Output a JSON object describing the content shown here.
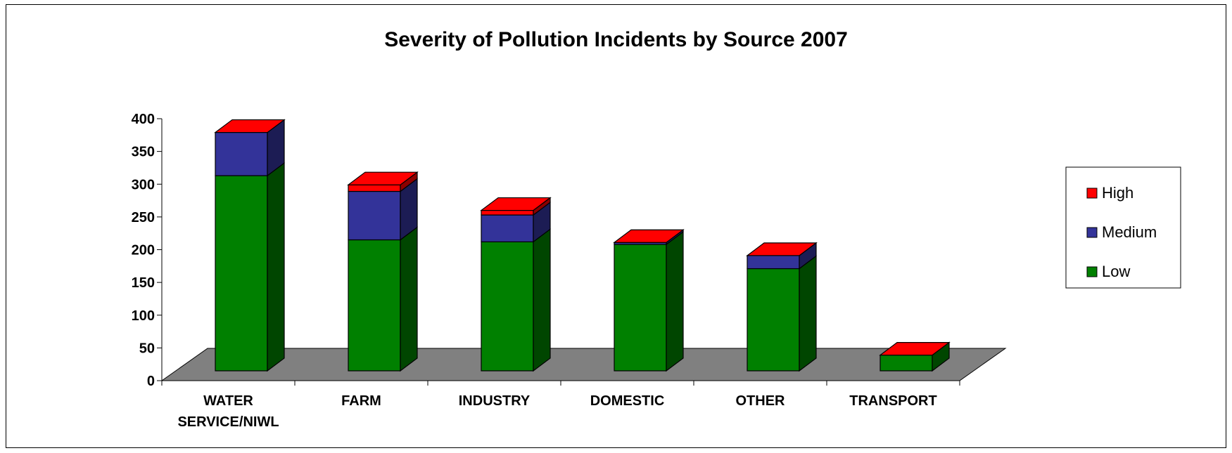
{
  "chart_data": {
    "type": "bar",
    "stacked": true,
    "three_d": true,
    "title": "Severity of Pollution Incidents by Source 2007",
    "categories": [
      [
        "WATER",
        "SERVICE/NIWL"
      ],
      [
        "FARM"
      ],
      [
        "INDUSTRY"
      ],
      [
        "DOMESTIC"
      ],
      [
        "OTHER"
      ],
      [
        "TRANSPORT"
      ]
    ],
    "series": [
      {
        "name": "Low",
        "color": "#008000",
        "values": [
          298,
          200,
          197,
          193,
          156,
          24
        ]
      },
      {
        "name": "Medium",
        "color": "#333399",
        "values": [
          66,
          74,
          41,
          3,
          20,
          0
        ]
      },
      {
        "name": "High",
        "color": "#ff0000",
        "values": [
          0,
          10,
          7,
          0,
          0,
          0
        ]
      }
    ],
    "yticks": [
      0,
      50,
      100,
      150,
      200,
      250,
      300,
      350,
      400
    ],
    "ylim": [
      0,
      400
    ],
    "legend": {
      "position": "right",
      "order": [
        "High",
        "Medium",
        "Low"
      ]
    },
    "floor_color": "#808080",
    "grid": false
  }
}
